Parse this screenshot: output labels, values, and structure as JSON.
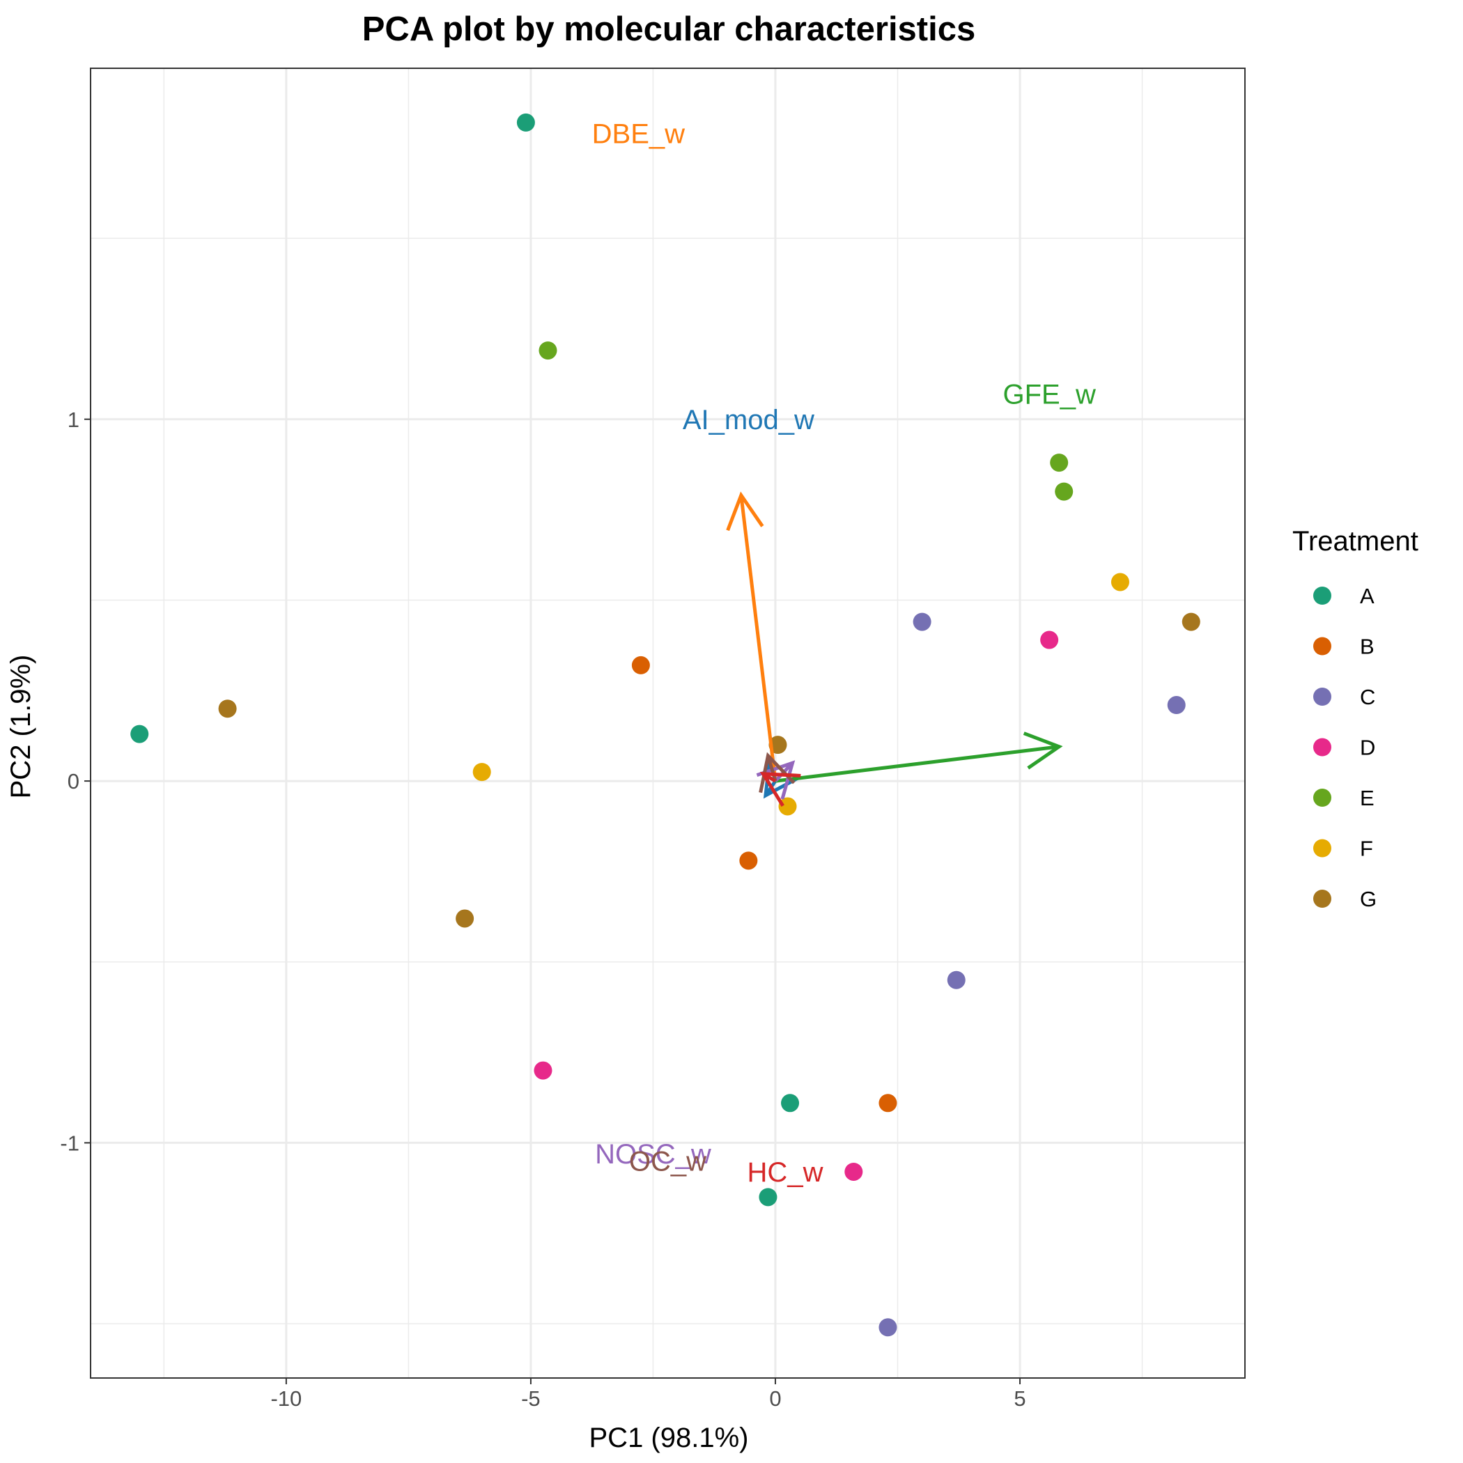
{
  "chart_data": {
    "type": "scatter",
    "title": "PCA plot by molecular characteristics",
    "xlabel": "PC1 (98.1%)",
    "ylabel": "PC2 (1.9%)",
    "xlim": [
      -14.0,
      9.6
    ],
    "ylim": [
      -1.65,
      1.97
    ],
    "xticks": [
      -10,
      -5,
      0,
      5
    ],
    "yticks": [
      -1,
      0,
      1
    ],
    "x_tick_labels": [
      "-10",
      "-5",
      "0",
      "5"
    ],
    "y_tick_labels": [
      "-1",
      "0",
      "1"
    ],
    "grid": true,
    "legend": {
      "title": "Treatment",
      "placement": "right",
      "entries": [
        {
          "name": "A",
          "color": "#1b9e77"
        },
        {
          "name": "B",
          "color": "#d95f02"
        },
        {
          "name": "C",
          "color": "#7570b3"
        },
        {
          "name": "D",
          "color": "#e7298a"
        },
        {
          "name": "E",
          "color": "#66a61e"
        },
        {
          "name": "F",
          "color": "#e6ab02"
        },
        {
          "name": "G",
          "color": "#a6761d"
        }
      ]
    },
    "series": [
      {
        "name": "A",
        "color": "#1b9e77",
        "points": [
          [
            -5.1,
            1.82
          ],
          [
            -13.0,
            0.13
          ],
          [
            0.3,
            -0.89
          ],
          [
            -0.15,
            -1.15
          ]
        ]
      },
      {
        "name": "B",
        "color": "#d95f02",
        "points": [
          [
            -2.75,
            0.32
          ],
          [
            -0.55,
            -0.22
          ],
          [
            2.3,
            -0.89
          ]
        ]
      },
      {
        "name": "C",
        "color": "#7570b3",
        "points": [
          [
            3.0,
            0.44
          ],
          [
            8.2,
            0.21
          ],
          [
            3.7,
            -0.55
          ],
          [
            2.3,
            -1.51
          ]
        ]
      },
      {
        "name": "D",
        "color": "#e7298a",
        "points": [
          [
            5.6,
            0.39
          ],
          [
            -4.75,
            -0.8
          ],
          [
            1.6,
            -1.08
          ]
        ]
      },
      {
        "name": "E",
        "color": "#66a61e",
        "points": [
          [
            -4.65,
            1.19
          ],
          [
            5.8,
            0.88
          ],
          [
            5.9,
            0.8
          ]
        ]
      },
      {
        "name": "F",
        "color": "#e6ab02",
        "points": [
          [
            7.05,
            0.55
          ],
          [
            -6.0,
            0.025
          ],
          [
            0.25,
            -0.07
          ]
        ]
      },
      {
        "name": "G",
        "color": "#a6761d",
        "points": [
          [
            8.5,
            0.44
          ],
          [
            -11.2,
            0.2
          ],
          [
            0.05,
            0.1
          ],
          [
            -6.35,
            -0.38
          ]
        ]
      }
    ],
    "loadings": [
      {
        "name": "DBE_w",
        "color": "#ff7f0e",
        "x": -0.7,
        "y": 0.79,
        "label_x": -2.8,
        "label_y": 1.79
      },
      {
        "name": "AI_mod_w",
        "color": "#1f77b4",
        "x": -0.2,
        "y": -0.04,
        "label_x": -0.55,
        "label_y": 1.0
      },
      {
        "name": "GFE_w",
        "color": "#2ca02c",
        "x": 5.8,
        "y": 0.095,
        "label_x": 5.6,
        "label_y": 1.07
      },
      {
        "name": "NOSC_w",
        "color": "#9467bd",
        "x": 0.35,
        "y": 0.05,
        "label_x": -2.5,
        "label_y": -1.03
      },
      {
        "name": "OC_w",
        "color": "#8c564b",
        "x": -0.15,
        "y": 0.07,
        "label_x": -2.2,
        "label_y": -1.05
      },
      {
        "name": "HC_w",
        "color": "#d62728",
        "x": -0.25,
        "y": 0.02,
        "label_x": 0.2,
        "label_y": -1.08
      }
    ]
  }
}
